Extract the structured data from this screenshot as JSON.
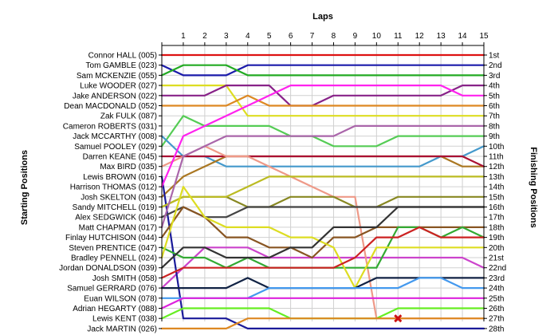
{
  "chart_data": {
    "type": "line",
    "title": "Laps",
    "xlabel": "Laps",
    "ylabel_left": "Starting Positions",
    "ylabel_right": "Finishing Positions",
    "laps": [
      1,
      2,
      3,
      4,
      5,
      6,
      7,
      8,
      9,
      10,
      11,
      12,
      13,
      14,
      15
    ],
    "xlim": [
      0,
      15
    ],
    "ylim": [
      1,
      28
    ],
    "grid": true,
    "starting_labels": [
      "Connor HALL (005)",
      "Tom GAMBLE (023)",
      "Sam MCKENZIE (055)",
      "Luke WOODER (027)",
      "Jake ANDERSON (022)",
      "Dean MACDONALD (052)",
      "Zak FULK (087)",
      "Cameron ROBERTS (031)",
      "Jack MCCARTHY (008)",
      "Samuel POOLEY (029)",
      "Darren KEANE (045)",
      "Max BIRD (035)",
      "Lewis BROWN (016)",
      "Harrison THOMAS (012)",
      "Josh SKELTON (043)",
      "Sandy MITCHELL (019)",
      "Alex SEDGWICK (046)",
      "Matt CHAPMAN (017)",
      "Finlay HUTCHISON (044)",
      "Steven PRENTICE (047)",
      "Bradley PENNELL (024)",
      "Jordan DONALDSON (039)",
      "Josh SMITH (058)",
      "Samuel GERRARD (076)",
      "Euan WILSON (078)",
      "Adrian HEGARTY (088)",
      "Lewis KENT (038)",
      "Jack MARTIN (026)"
    ],
    "finishing_labels": [
      "1st",
      "2nd",
      "3rd",
      "4th",
      "5th",
      "6th",
      "7th",
      "8th",
      "9th",
      "10th",
      "11th",
      "12th",
      "13th",
      "14th",
      "15th",
      "16th",
      "17th",
      "18th",
      "19th",
      "20th",
      "21st",
      "22nd",
      "23rd",
      "24th",
      "25th",
      "26th",
      "27th",
      "28th"
    ],
    "retired_marker": {
      "lap": 11,
      "position": 27
    },
    "series": [
      {
        "color": "#dd1111",
        "positions": [
          1,
          1,
          1,
          1,
          1,
          1,
          1,
          1,
          1,
          1,
          1,
          1,
          1,
          1,
          1,
          1
        ]
      },
      {
        "color": "#1a1aaa",
        "positions": [
          2,
          3,
          3,
          3,
          2,
          2,
          2,
          2,
          2,
          2,
          2,
          2,
          2,
          2,
          2,
          2
        ]
      },
      {
        "color": "#22aa22",
        "positions": [
          3,
          2,
          2,
          2,
          3,
          3,
          3,
          3,
          3,
          3,
          3,
          3,
          3,
          3,
          3,
          3
        ]
      },
      {
        "color": "#dddd22",
        "positions": [
          4,
          4,
          4,
          4,
          7,
          7,
          7,
          7,
          7,
          7,
          7,
          7,
          7,
          7,
          7,
          7
        ]
      },
      {
        "color": "#882288",
        "positions": [
          5,
          5,
          5,
          4,
          4,
          4,
          6,
          6,
          5,
          5,
          5,
          5,
          5,
          5,
          4,
          4
        ]
      },
      {
        "color": "#dd8822",
        "positions": [
          6,
          6,
          6,
          6,
          5,
          6,
          6,
          6,
          6,
          6,
          6,
          6,
          6,
          6,
          6,
          6
        ]
      },
      {
        "color": "#55cc55",
        "positions": [
          10,
          7,
          8,
          8,
          8,
          8,
          9,
          9,
          10,
          10,
          10,
          9,
          9,
          9,
          9,
          9
        ]
      },
      {
        "color": "#4499cc",
        "positions": [
          9,
          11,
          11,
          12,
          12,
          12,
          12,
          12,
          12,
          12,
          12,
          12,
          12,
          11,
          11,
          10
        ]
      },
      {
        "color": "#cc44cc",
        "positions": [
          24,
          22,
          20,
          20,
          20,
          21,
          21,
          21,
          21,
          21,
          21,
          21,
          21,
          21,
          21,
          22
        ]
      },
      {
        "color": "#aa7722",
        "positions": [
          15,
          13,
          12,
          11,
          11,
          11,
          11,
          11,
          11,
          11,
          11,
          11,
          11,
          11,
          12,
          12
        ]
      },
      {
        "color": "#aa1133",
        "positions": [
          11,
          11,
          11,
          11,
          11,
          11,
          11,
          11,
          11,
          11,
          11,
          11,
          11,
          11,
          11,
          12
        ]
      },
      {
        "color": "#ee9988",
        "positions": [
          12,
          11,
          10,
          11,
          11,
          12,
          13,
          14,
          15,
          15,
          27,
          27,
          27,
          27,
          27,
          27
        ]
      },
      {
        "color": "#1a1a99",
        "positions": [
          13,
          27,
          27,
          27,
          28,
          28,
          28,
          28,
          28,
          28,
          28,
          28,
          28,
          28,
          28,
          28
        ]
      },
      {
        "color": "#ff22ee",
        "positions": [
          14,
          9,
          8,
          7,
          6,
          5,
          4,
          4,
          4,
          4,
          4,
          4,
          4,
          4,
          5,
          5
        ]
      },
      {
        "color": "#888822",
        "positions": [
          16,
          15,
          15,
          15,
          16,
          16,
          15,
          15,
          15,
          16,
          16,
          15,
          15,
          15,
          15,
          15
        ]
      },
      {
        "color": "#bbbb22",
        "positions": [
          16,
          15,
          15,
          15,
          14,
          13,
          13,
          13,
          13,
          13,
          13,
          13,
          13,
          13,
          13,
          13
        ]
      },
      {
        "color": "#444444",
        "positions": [
          17,
          16,
          17,
          17,
          16,
          16,
          16,
          16,
          16,
          16,
          16,
          16,
          16,
          16,
          16,
          16
        ]
      },
      {
        "color": "#aa66aa",
        "positions": [
          18,
          11,
          10,
          9,
          9,
          9,
          9,
          9,
          9,
          8,
          8,
          8,
          8,
          8,
          8,
          8
        ]
      },
      {
        "color": "#885522",
        "positions": [
          19,
          16,
          17,
          19,
          19,
          20,
          20,
          21,
          19,
          19,
          18,
          18,
          18,
          18,
          18,
          18
        ]
      },
      {
        "color": "#33aa33",
        "positions": [
          20,
          21,
          21,
          22,
          21,
          22,
          22,
          22,
          22,
          22,
          22,
          18,
          18,
          19,
          18,
          19
        ]
      },
      {
        "color": "#dddd22",
        "positions": [
          21,
          14,
          17,
          18,
          18,
          18,
          19,
          19,
          20,
          24,
          20,
          20,
          20,
          20,
          20,
          20
        ]
      },
      {
        "color": "#333333",
        "positions": [
          22,
          20,
          20,
          21,
          21,
          21,
          20,
          20,
          18,
          18,
          18,
          16,
          16,
          16,
          16,
          16
        ]
      },
      {
        "color": "#cc2222",
        "positions": [
          23,
          22,
          22,
          22,
          22,
          22,
          22,
          22,
          22,
          21,
          19,
          19,
          18,
          19,
          19,
          19
        ]
      },
      {
        "color": "#112244",
        "positions": [
          24,
          24,
          24,
          24,
          23,
          24,
          24,
          24,
          24,
          24,
          23,
          23,
          23,
          23,
          23,
          23
        ]
      },
      {
        "color": "#4499ee",
        "positions": [
          25,
          25,
          25,
          25,
          25,
          24,
          24,
          24,
          24,
          24,
          24,
          24,
          23,
          23,
          24,
          24
        ]
      },
      {
        "color": "#dd22dd",
        "positions": [
          26,
          25,
          25,
          25,
          25,
          25,
          25,
          25,
          25,
          25,
          25,
          25,
          25,
          25,
          25,
          25
        ]
      },
      {
        "color": "#66ee22",
        "positions": [
          27,
          26,
          26,
          26,
          26,
          26,
          27,
          27,
          27,
          27,
          27,
          26,
          26,
          26,
          26,
          26
        ]
      },
      {
        "color": "#dd8822",
        "positions": [
          28,
          28,
          28,
          28,
          27,
          27,
          27,
          27,
          27,
          27,
          27,
          27,
          27,
          27,
          27,
          27
        ]
      }
    ]
  }
}
